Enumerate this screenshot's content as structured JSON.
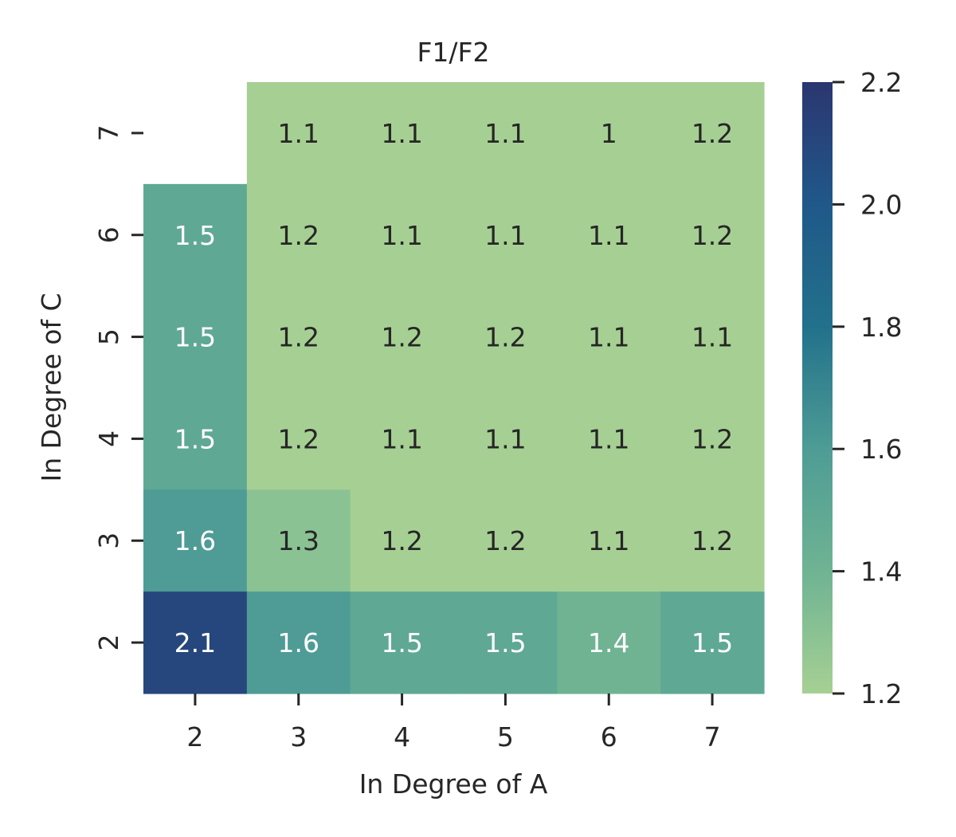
{
  "chart_data": {
    "type": "heatmap",
    "title": "F1/F2",
    "xlabel": "In Degree of A",
    "ylabel": "In Degree of C",
    "x_categories": [
      "2",
      "3",
      "4",
      "5",
      "6",
      "7"
    ],
    "y_categories": [
      "7",
      "6",
      "5",
      "4",
      "3",
      "2"
    ],
    "values": [
      [
        null,
        1.1,
        1.1,
        1.1,
        1.0,
        1.2
      ],
      [
        1.5,
        1.2,
        1.1,
        1.1,
        1.1,
        1.2
      ],
      [
        1.5,
        1.2,
        1.2,
        1.2,
        1.1,
        1.1
      ],
      [
        1.5,
        1.2,
        1.1,
        1.1,
        1.1,
        1.2
      ],
      [
        1.6,
        1.3,
        1.2,
        1.2,
        1.1,
        1.2
      ],
      [
        2.1,
        1.6,
        1.5,
        1.5,
        1.4,
        1.5
      ]
    ],
    "cell_labels": [
      [
        "",
        "1.1",
        "1.1",
        "1.1",
        "1",
        "1.2"
      ],
      [
        "1.5",
        "1.2",
        "1.1",
        "1.1",
        "1.1",
        "1.2"
      ],
      [
        "1.5",
        "1.2",
        "1.2",
        "1.2",
        "1.1",
        "1.1"
      ],
      [
        "1.5",
        "1.2",
        "1.1",
        "1.1",
        "1.1",
        "1.2"
      ],
      [
        "1.6",
        "1.3",
        "1.2",
        "1.2",
        "1.1",
        "1.2"
      ],
      [
        "2.1",
        "1.6",
        "1.5",
        "1.5",
        "1.4",
        "1.5"
      ]
    ],
    "colorbar": {
      "min": 1.2,
      "max": 2.2,
      "ticks": [
        "1.2",
        "1.4",
        "1.6",
        "1.8",
        "2.0",
        "2.2"
      ],
      "colors": [
        "#a6d093",
        "#6fb393",
        "#4e9c95",
        "#22718b",
        "#20588a",
        "#2b3670"
      ]
    },
    "grid": false,
    "legend": "colorbar-right"
  }
}
